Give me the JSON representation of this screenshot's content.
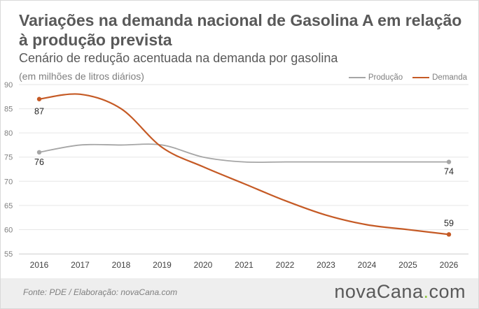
{
  "title": "Variações na demanda nacional de Gasolina A em relação à produção prevista",
  "subtitle": "Cenário de redução acentuada na demanda por gasolina",
  "unit_note": "(em milhões de litros diários)",
  "footer": {
    "source": "Fonte: PDE / Elaboração:  novaCana.com",
    "logo_main": "novaCana",
    "logo_dot": ".",
    "logo_tld": "com"
  },
  "colors": {
    "producao": "#a6a6a6",
    "demanda": "#c55a25",
    "axis_text": "#7f7f7f",
    "grid": "#e6e6e6"
  },
  "chart_data": {
    "type": "line",
    "title": "Variações na demanda nacional de Gasolina A em relação à produção prevista",
    "subtitle": "Cenário de redução acentuada na demanda por gasolina",
    "ylabel": "(em milhões de litros diários)",
    "categories": [
      "2016",
      "2017",
      "2018",
      "2019",
      "2020",
      "2021",
      "2022",
      "2023",
      "2024",
      "2025",
      "2026"
    ],
    "yticks": [
      "55",
      "60",
      "65",
      "70",
      "75",
      "80",
      "85",
      "90"
    ],
    "ylim": [
      55,
      90
    ],
    "grid": true,
    "legend": "top-right",
    "series": [
      {
        "name": "Produção",
        "values": [
          76,
          77.5,
          77.5,
          77.5,
          75,
          74,
          74,
          74,
          74,
          74,
          74
        ],
        "labels": [
          "76",
          "",
          "",
          "",
          "",
          "",
          "",
          "",
          "",
          "",
          "74"
        ]
      },
      {
        "name": "Demanda",
        "values": [
          87,
          88,
          85,
          77,
          73,
          69.5,
          66,
          63,
          61,
          60,
          59
        ],
        "labels": [
          "87",
          "",
          "",
          "",
          "",
          "",
          "",
          "",
          "",
          "",
          "59"
        ]
      }
    ]
  }
}
